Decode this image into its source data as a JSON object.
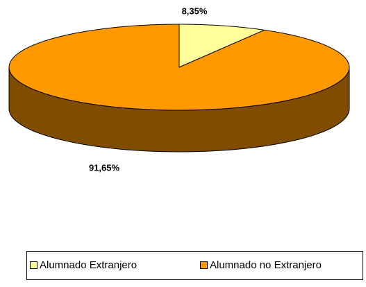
{
  "chart_data": {
    "type": "pie",
    "categories": [
      "Alumnado Extranjero",
      "Alumnado no Extranjero"
    ],
    "values": [
      8.35,
      91.65
    ],
    "value_labels": [
      "8,35%",
      "91,65%"
    ],
    "colors": [
      "#ffff99",
      "#ff9900"
    ],
    "legend": "bottom",
    "three_d": true
  }
}
